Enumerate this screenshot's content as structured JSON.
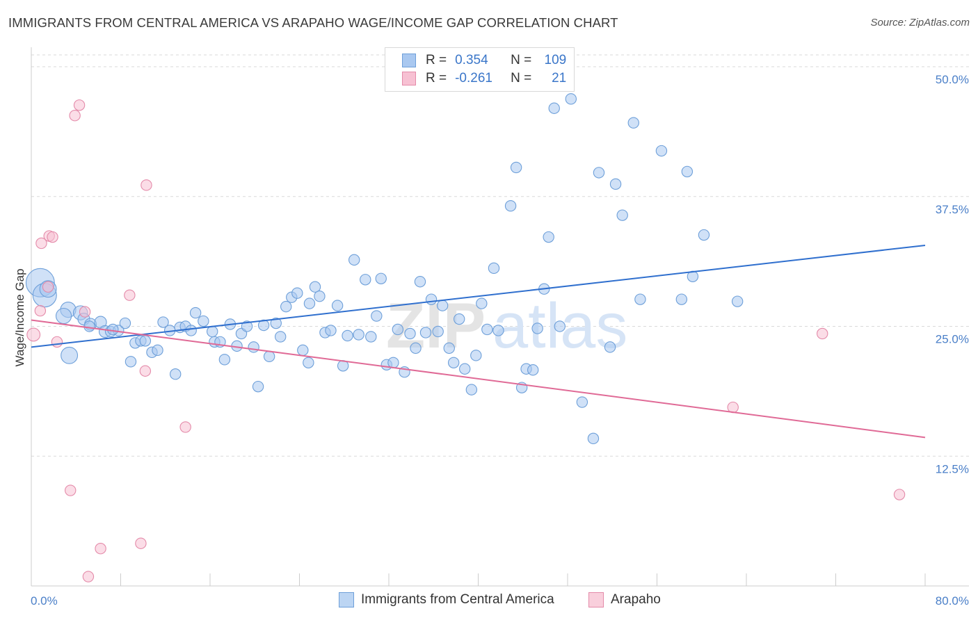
{
  "title": "IMMIGRANTS FROM CENTRAL AMERICA VS ARAPAHO WAGE/INCOME GAP CORRELATION CHART",
  "source": "Source: ZipAtlas.com",
  "watermark": {
    "zip": "ZIP",
    "atlas": "atlas"
  },
  "legend": {
    "rows": [
      {
        "r_label": "R =",
        "r_value": "0.354",
        "n_label": "N =",
        "n_value": "109",
        "color": "#a9c8f0",
        "border": "#6d9fd9"
      },
      {
        "r_label": "R =",
        "r_value": "-0.261",
        "n_label": "N =",
        "n_value": "21",
        "color": "#f7c1d3",
        "border": "#e48aa9"
      }
    ]
  },
  "bottom_legend": [
    {
      "label": "Immigrants from Central America",
      "color": "#bcd5f3",
      "border": "#6d9fd9"
    },
    {
      "label": "Arapaho",
      "color": "#f9cfdc",
      "border": "#e48aa9"
    }
  ],
  "colors": {
    "blue_fill": "#a9c8f0",
    "blue_stroke": "#6d9fd9",
    "blue_line": "#2f6fce",
    "pink_fill": "#f7c1d3",
    "pink_stroke": "#e48aa9",
    "pink_line": "#e06a96",
    "grid": "#d9d9d9",
    "axis_text": "#4a7fc8"
  },
  "chart_data": {
    "type": "scatter",
    "title": "IMMIGRANTS FROM CENTRAL AMERICA VS ARAPAHO WAGE/INCOME GAP CORRELATION CHART",
    "xlabel": "",
    "ylabel": "Wage/Income Gap",
    "xlim": [
      0,
      80
    ],
    "ylim": [
      0,
      50
    ],
    "x_ticks": [
      "0.0%",
      "80.0%"
    ],
    "y_ticks": [
      {
        "value": 12.5,
        "label": "12.5%"
      },
      {
        "value": 25.0,
        "label": "25.0%"
      },
      {
        "value": 37.5,
        "label": "37.5%"
      },
      {
        "value": 50.0,
        "label": "50.0%"
      }
    ],
    "grid": "horizontal dashed",
    "series": [
      {
        "name": "Immigrants from Central America",
        "trend": {
          "x": [
            0,
            80
          ],
          "y": [
            23.0,
            32.8
          ]
        },
        "points": [
          [
            0.8,
            29.2,
            2.4
          ],
          [
            1.2,
            28.0,
            2.0
          ],
          [
            1.5,
            28.6,
            1.4
          ],
          [
            3.3,
            26.6,
            1.3
          ],
          [
            2.9,
            26.0,
            1.3
          ],
          [
            3.4,
            22.2,
            1.4
          ],
          [
            4.4,
            26.3,
            1.2
          ],
          [
            4.7,
            25.7,
            1.0
          ],
          [
            5.3,
            25.2,
            1.0
          ],
          [
            5.2,
            25.0,
            0.9
          ],
          [
            6.2,
            25.4,
            1.0
          ],
          [
            6.6,
            24.5,
            1.0
          ],
          [
            7.1,
            24.5,
            0.9
          ],
          [
            7.8,
            24.6,
            0.9
          ],
          [
            8.4,
            25.3,
            0.9
          ],
          [
            8.9,
            21.6,
            0.9
          ],
          [
            9.3,
            23.4,
            0.9
          ],
          [
            9.8,
            23.6,
            0.9
          ],
          [
            10.2,
            23.6,
            0.9
          ],
          [
            10.8,
            22.5,
            0.9
          ],
          [
            11.3,
            22.7,
            0.9
          ],
          [
            11.8,
            25.4,
            0.9
          ],
          [
            12.4,
            24.6,
            0.9
          ],
          [
            12.9,
            20.4,
            0.9
          ],
          [
            13.3,
            24.9,
            0.9
          ],
          [
            13.8,
            25.0,
            0.9
          ],
          [
            14.3,
            24.6,
            0.9
          ],
          [
            14.7,
            26.3,
            0.9
          ],
          [
            15.4,
            25.5,
            0.9
          ],
          [
            16.4,
            23.5,
            0.9
          ],
          [
            16.9,
            23.5,
            0.9
          ],
          [
            17.3,
            21.8,
            0.9
          ],
          [
            17.8,
            25.2,
            0.9
          ],
          [
            18.4,
            23.1,
            0.9
          ],
          [
            18.8,
            24.3,
            0.9
          ],
          [
            19.3,
            25.0,
            0.9
          ],
          [
            19.9,
            23.0,
            0.9
          ],
          [
            20.3,
            19.2,
            0.9
          ],
          [
            20.8,
            25.1,
            0.9
          ],
          [
            21.3,
            22.1,
            0.9
          ],
          [
            21.9,
            25.3,
            0.9
          ],
          [
            22.3,
            24.0,
            0.9
          ],
          [
            22.8,
            26.9,
            0.9
          ],
          [
            23.3,
            27.8,
            0.9
          ],
          [
            23.8,
            28.2,
            0.9
          ],
          [
            24.3,
            22.7,
            0.9
          ],
          [
            24.9,
            27.2,
            0.9
          ],
          [
            25.4,
            28.8,
            0.9
          ],
          [
            25.8,
            27.9,
            0.9
          ],
          [
            26.3,
            24.4,
            0.9
          ],
          [
            26.8,
            24.6,
            0.9
          ],
          [
            27.4,
            27.0,
            0.9
          ],
          [
            27.9,
            21.2,
            0.9
          ],
          [
            28.3,
            24.1,
            0.9
          ],
          [
            28.9,
            31.4,
            0.9
          ],
          [
            29.3,
            24.2,
            0.9
          ],
          [
            29.9,
            29.5,
            0.9
          ],
          [
            30.4,
            24.0,
            0.9
          ],
          [
            30.9,
            26.0,
            0.9
          ],
          [
            31.3,
            29.6,
            0.9
          ],
          [
            31.8,
            21.3,
            0.9
          ],
          [
            32.4,
            21.5,
            0.9
          ],
          [
            32.8,
            24.7,
            0.9
          ],
          [
            33.4,
            20.6,
            0.9
          ],
          [
            33.9,
            24.3,
            0.9
          ],
          [
            34.4,
            22.9,
            0.9
          ],
          [
            34.8,
            29.3,
            0.9
          ],
          [
            35.3,
            24.4,
            0.9
          ],
          [
            35.8,
            27.6,
            0.9
          ],
          [
            36.4,
            24.5,
            0.9
          ],
          [
            36.8,
            27.0,
            0.9
          ],
          [
            37.4,
            22.9,
            0.9
          ],
          [
            37.8,
            21.5,
            0.9
          ],
          [
            38.3,
            25.7,
            0.9
          ],
          [
            38.8,
            20.9,
            0.9
          ],
          [
            39.4,
            18.9,
            0.9
          ],
          [
            39.8,
            22.2,
            0.9
          ],
          [
            40.3,
            27.2,
            0.9
          ],
          [
            40.8,
            24.7,
            0.9
          ],
          [
            41.4,
            30.6,
            0.9
          ],
          [
            41.8,
            24.6,
            0.9
          ],
          [
            42.9,
            36.6,
            0.9
          ],
          [
            43.4,
            40.3,
            0.9
          ],
          [
            43.9,
            19.1,
            0.9
          ],
          [
            44.3,
            20.9,
            0.9
          ],
          [
            44.9,
            20.8,
            0.9
          ],
          [
            45.3,
            24.8,
            0.9
          ],
          [
            45.9,
            28.6,
            0.9
          ],
          [
            46.3,
            33.6,
            0.9
          ],
          [
            46.8,
            46.0,
            0.9
          ],
          [
            47.3,
            25.0,
            0.9
          ],
          [
            48.3,
            46.9,
            0.9
          ],
          [
            49.3,
            17.7,
            0.9
          ],
          [
            50.3,
            14.2,
            0.9
          ],
          [
            50.8,
            39.8,
            0.9
          ],
          [
            51.8,
            23.0,
            0.9
          ],
          [
            52.3,
            38.7,
            0.9
          ],
          [
            52.9,
            35.7,
            0.9
          ],
          [
            53.9,
            44.6,
            0.9
          ],
          [
            54.5,
            27.6,
            0.9
          ],
          [
            56.4,
            41.9,
            0.9
          ],
          [
            58.2,
            27.6,
            0.9
          ],
          [
            58.7,
            39.9,
            0.9
          ],
          [
            59.2,
            29.8,
            0.9
          ],
          [
            60.2,
            33.8,
            0.9
          ],
          [
            63.2,
            27.4,
            0.9
          ],
          [
            7.3,
            24.7,
            0.9
          ],
          [
            16.2,
            24.5,
            0.9
          ],
          [
            24.8,
            21.5,
            0.9
          ]
        ]
      },
      {
        "name": "Arapaho",
        "trend": {
          "x": [
            0,
            80
          ],
          "y": [
            25.6,
            14.3
          ]
        },
        "points": [
          [
            0.2,
            24.2,
            1.1
          ],
          [
            0.8,
            26.5,
            0.9
          ],
          [
            0.9,
            33.0,
            0.9
          ],
          [
            1.6,
            33.7,
            0.9
          ],
          [
            1.9,
            33.6,
            0.9
          ],
          [
            1.5,
            28.8,
            0.9
          ],
          [
            2.3,
            23.5,
            0.9
          ],
          [
            3.5,
            9.2,
            0.9
          ],
          [
            3.9,
            45.3,
            0.9
          ],
          [
            4.3,
            46.3,
            0.9
          ],
          [
            4.8,
            26.4,
            0.9
          ],
          [
            5.1,
            0.9,
            0.9
          ],
          [
            6.2,
            3.6,
            0.9
          ],
          [
            8.8,
            28.0,
            0.9
          ],
          [
            9.8,
            4.1,
            0.9
          ],
          [
            10.2,
            20.7,
            0.9
          ],
          [
            10.3,
            38.6,
            0.9
          ],
          [
            13.8,
            15.3,
            0.9
          ],
          [
            62.8,
            17.2,
            0.9
          ],
          [
            70.8,
            24.3,
            0.9
          ],
          [
            77.7,
            8.8,
            0.9
          ]
        ]
      }
    ]
  }
}
